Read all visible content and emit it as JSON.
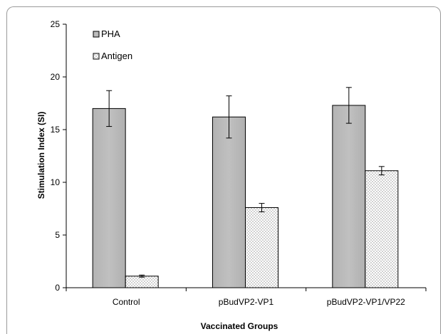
{
  "chart_data": {
    "type": "bar",
    "title": "",
    "xlabel": "Vaccinated Groups",
    "ylabel": "Stimulation Index (SI)",
    "ylim": [
      0,
      25
    ],
    "yticks": [
      0,
      5,
      10,
      15,
      20,
      25
    ],
    "categories": [
      "Control",
      "pBudVP2-VP1",
      "pBudVP2-VP1/VP22"
    ],
    "series": [
      {
        "name": "PHA",
        "values": [
          17.0,
          16.2,
          17.3
        ],
        "errors": [
          1.7,
          2.0,
          1.7
        ],
        "color": "#b9b9b9",
        "pattern": "solid"
      },
      {
        "name": "Antigen",
        "values": [
          1.1,
          7.6,
          11.1
        ],
        "errors": [
          0.1,
          0.4,
          0.4
        ],
        "color": "#ffffff",
        "pattern": "dotted"
      }
    ],
    "legend_position": "top-left",
    "grid": false
  }
}
